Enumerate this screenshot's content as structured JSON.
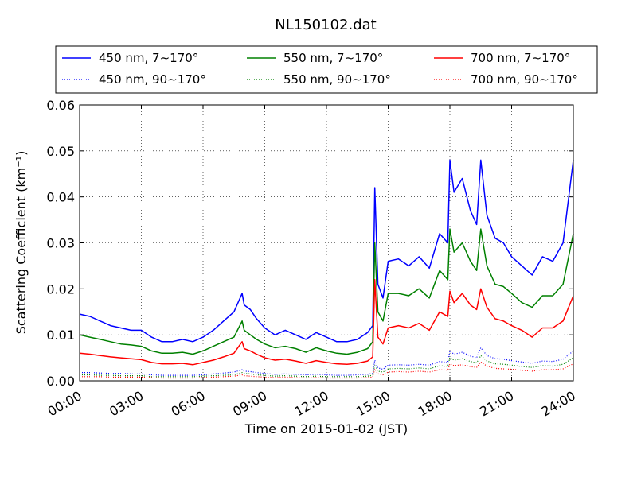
{
  "chart_data": {
    "type": "line",
    "title": "NL150102.dat",
    "xlabel": "Time on 2015-01-02 (JST)",
    "ylabel": "Scattering Coefficient (km⁻¹)",
    "xlim": [
      "00:00",
      "24:00"
    ],
    "ylim": [
      0,
      0.06
    ],
    "x_ticks": [
      "00:00",
      "03:00",
      "06:00",
      "09:00",
      "12:00",
      "15:00",
      "18:00",
      "21:00",
      "24:00"
    ],
    "y_ticks": [
      "0.00",
      "0.01",
      "0.02",
      "0.03",
      "0.04",
      "0.05",
      "0.06"
    ],
    "grid": true,
    "legend_position": "top, above plot",
    "x_hours": [
      0,
      0.5,
      1,
      1.5,
      2,
      2.5,
      3,
      3.5,
      4,
      4.5,
      5,
      5.5,
      6,
      6.5,
      7,
      7.5,
      7.9,
      8,
      8.3,
      8.6,
      9,
      9.5,
      10,
      10.5,
      11,
      11.5,
      12,
      12.5,
      13,
      13.5,
      14,
      14.25,
      14.35,
      14.5,
      14.75,
      15,
      15.5,
      16,
      16.5,
      17,
      17.5,
      17.9,
      18,
      18.2,
      18.6,
      19,
      19.3,
      19.5,
      19.8,
      20.2,
      20.6,
      21,
      21.5,
      22,
      22.5,
      23,
      23.5,
      24
    ],
    "series": [
      {
        "name": "450 nm, 7∼170°",
        "color": "#0000ff",
        "style": "solid",
        "values": [
          0.0145,
          0.014,
          0.013,
          0.012,
          0.0115,
          0.011,
          0.011,
          0.0095,
          0.0085,
          0.0085,
          0.009,
          0.0085,
          0.0095,
          0.011,
          0.013,
          0.015,
          0.019,
          0.0165,
          0.0155,
          0.0135,
          0.0115,
          0.01,
          0.011,
          0.01,
          0.009,
          0.0105,
          0.0095,
          0.0085,
          0.0085,
          0.009,
          0.0105,
          0.012,
          0.042,
          0.021,
          0.018,
          0.026,
          0.0265,
          0.025,
          0.027,
          0.0245,
          0.032,
          0.03,
          0.048,
          0.041,
          0.044,
          0.037,
          0.034,
          0.048,
          0.036,
          0.031,
          0.03,
          0.027,
          0.025,
          0.023,
          0.027,
          0.026,
          0.03,
          0.048
        ]
      },
      {
        "name": "550 nm, 7∼170°",
        "color": "#008000",
        "style": "solid",
        "values": [
          0.01,
          0.0095,
          0.009,
          0.0085,
          0.008,
          0.0078,
          0.0075,
          0.0065,
          0.006,
          0.006,
          0.0062,
          0.0058,
          0.0065,
          0.0075,
          0.0085,
          0.0095,
          0.013,
          0.011,
          0.01,
          0.009,
          0.008,
          0.0072,
          0.0075,
          0.007,
          0.0062,
          0.0072,
          0.0065,
          0.006,
          0.0058,
          0.0062,
          0.007,
          0.0085,
          0.03,
          0.015,
          0.013,
          0.019,
          0.019,
          0.0185,
          0.02,
          0.018,
          0.024,
          0.022,
          0.033,
          0.028,
          0.03,
          0.026,
          0.024,
          0.033,
          0.025,
          0.021,
          0.0205,
          0.019,
          0.017,
          0.016,
          0.0185,
          0.0185,
          0.021,
          0.032
        ]
      },
      {
        "name": "700 nm, 7∼170°",
        "color": "#ff0000",
        "style": "solid",
        "values": [
          0.006,
          0.0058,
          0.0055,
          0.0052,
          0.005,
          0.0048,
          0.0046,
          0.004,
          0.0037,
          0.0037,
          0.0038,
          0.0035,
          0.004,
          0.0045,
          0.0052,
          0.006,
          0.0085,
          0.007,
          0.0065,
          0.0058,
          0.005,
          0.0045,
          0.0047,
          0.0043,
          0.0038,
          0.0044,
          0.004,
          0.0037,
          0.0036,
          0.0038,
          0.0043,
          0.0052,
          0.022,
          0.0095,
          0.008,
          0.0115,
          0.012,
          0.0115,
          0.0125,
          0.011,
          0.015,
          0.014,
          0.0195,
          0.017,
          0.019,
          0.0165,
          0.0155,
          0.02,
          0.016,
          0.0135,
          0.013,
          0.012,
          0.011,
          0.0095,
          0.0115,
          0.0115,
          0.013,
          0.0185
        ]
      },
      {
        "name": "450 nm, 90∼170°",
        "color": "#0000ff",
        "style": "dotted",
        "values": [
          0.0018,
          0.0018,
          0.0017,
          0.0016,
          0.0016,
          0.0015,
          0.0015,
          0.0013,
          0.0012,
          0.0012,
          0.0012,
          0.0012,
          0.0013,
          0.0015,
          0.0017,
          0.0019,
          0.0024,
          0.0021,
          0.002,
          0.0018,
          0.0016,
          0.0014,
          0.0015,
          0.0014,
          0.0013,
          0.0014,
          0.0013,
          0.0012,
          0.0012,
          0.0013,
          0.0014,
          0.0016,
          0.0045,
          0.0028,
          0.0025,
          0.0034,
          0.0035,
          0.0034,
          0.0036,
          0.0034,
          0.0042,
          0.004,
          0.0065,
          0.0058,
          0.0062,
          0.0054,
          0.005,
          0.0072,
          0.0055,
          0.0048,
          0.0047,
          0.0044,
          0.0041,
          0.0038,
          0.0043,
          0.0042,
          0.0047,
          0.0065
        ]
      },
      {
        "name": "550 nm, 90∼170°",
        "color": "#008000",
        "style": "dotted",
        "values": [
          0.0013,
          0.0013,
          0.0012,
          0.0012,
          0.0011,
          0.0011,
          0.0011,
          0.0009,
          0.0009,
          0.0009,
          0.0009,
          0.0009,
          0.001,
          0.0011,
          0.0012,
          0.0013,
          0.0018,
          0.0016,
          0.0015,
          0.0013,
          0.0012,
          0.001,
          0.0011,
          0.001,
          0.0009,
          0.001,
          0.0009,
          0.0009,
          0.0009,
          0.0009,
          0.001,
          0.0012,
          0.0035,
          0.0021,
          0.0019,
          0.0026,
          0.0027,
          0.0026,
          0.0028,
          0.0026,
          0.0033,
          0.0031,
          0.0051,
          0.0045,
          0.0048,
          0.0042,
          0.0039,
          0.0055,
          0.0043,
          0.0037,
          0.0036,
          0.0034,
          0.0031,
          0.0029,
          0.0033,
          0.0032,
          0.0036,
          0.005
        ]
      },
      {
        "name": "700 nm, 90∼170°",
        "color": "#ff0000",
        "style": "dotted",
        "values": [
          0.0009,
          0.0009,
          0.0009,
          0.0008,
          0.0008,
          0.0008,
          0.0008,
          0.0007,
          0.0006,
          0.0006,
          0.0006,
          0.0006,
          0.0007,
          0.0008,
          0.0009,
          0.001,
          0.0013,
          0.0011,
          0.001,
          0.0009,
          0.0008,
          0.0007,
          0.0008,
          0.0007,
          0.0006,
          0.0007,
          0.0006,
          0.0006,
          0.0006,
          0.0006,
          0.0007,
          0.0008,
          0.0026,
          0.0015,
          0.0013,
          0.0019,
          0.002,
          0.0019,
          0.0021,
          0.0019,
          0.0024,
          0.0023,
          0.0037,
          0.0033,
          0.0035,
          0.0031,
          0.0029,
          0.0041,
          0.0032,
          0.0027,
          0.0026,
          0.0025,
          0.0023,
          0.0021,
          0.0024,
          0.0024,
          0.0026,
          0.0037
        ]
      }
    ]
  }
}
